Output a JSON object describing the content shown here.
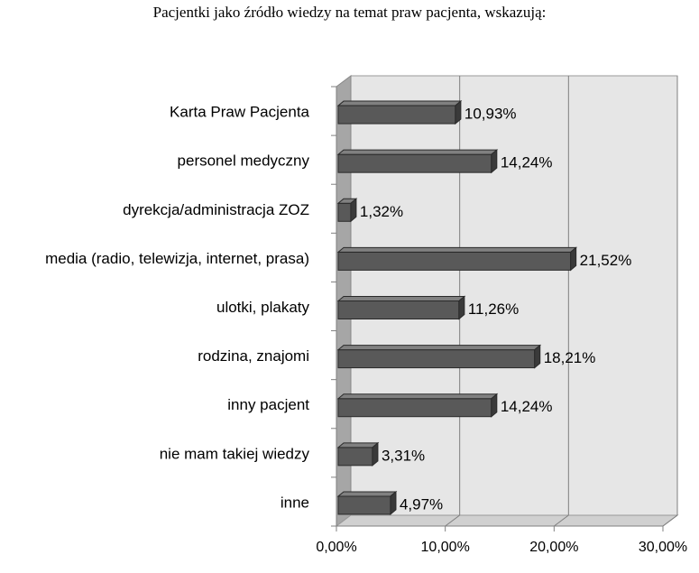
{
  "chart_data": {
    "type": "bar",
    "orientation": "horizontal",
    "title": "Pacjentki jako źródło wiedzy  na temat praw pacjenta,  wskazują:",
    "categories": [
      "Karta Praw Pacjenta",
      "personel medyczny",
      "dyrekcja/administracja ZOZ",
      "media (radio, telewizja, internet, prasa)",
      "ulotki, plakaty",
      "rodzina, znajomi",
      "inny pacjent",
      "nie mam takiej wiedzy",
      "inne"
    ],
    "values": [
      10.93,
      14.24,
      1.32,
      21.52,
      11.26,
      18.21,
      14.24,
      3.31,
      4.97
    ],
    "value_labels": [
      "10,93%",
      "14,24%",
      "1,32%",
      "21,52%",
      "11,26%",
      "18,21%",
      "14,24%",
      "3,31%",
      "4,97%"
    ],
    "xlim": [
      0,
      30
    ],
    "xticks": [
      0,
      10,
      20,
      30
    ],
    "xtick_labels": [
      "0,00%",
      "10,00%",
      "20,00%",
      "30,00%"
    ],
    "grid": true,
    "style": "3d",
    "colors": {
      "bar_front": "#595959",
      "bar_top": "#808080",
      "bar_side": "#3a3a3a",
      "plot_back": "#e6e6e6",
      "plot_wall": "#a6a6a6",
      "floor": "#d0d0d0",
      "grid": "#7f7f7f"
    }
  }
}
